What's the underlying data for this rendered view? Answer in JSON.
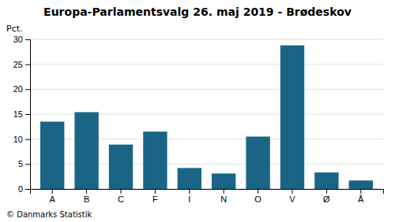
{
  "chart_data": {
    "type": "bar",
    "title": "Europa-Parlamentsvalg 26. maj 2019 - Brødeskov",
    "y_label": "Pct.",
    "annotations": [
      "© Danmarks Statistik"
    ],
    "categories": [
      "A",
      "B",
      "C",
      "F",
      "I",
      "N",
      "O",
      "V",
      "Ø",
      "Å"
    ],
    "values": [
      13.5,
      15.4,
      8.9,
      11.5,
      4.2,
      3.1,
      10.5,
      28.8,
      3.3,
      1.7
    ],
    "color": "#1a6585",
    "ylim": [
      0,
      30
    ],
    "yticks": [
      0,
      5,
      10,
      15,
      20,
      25,
      30
    ],
    "grid": true
  }
}
